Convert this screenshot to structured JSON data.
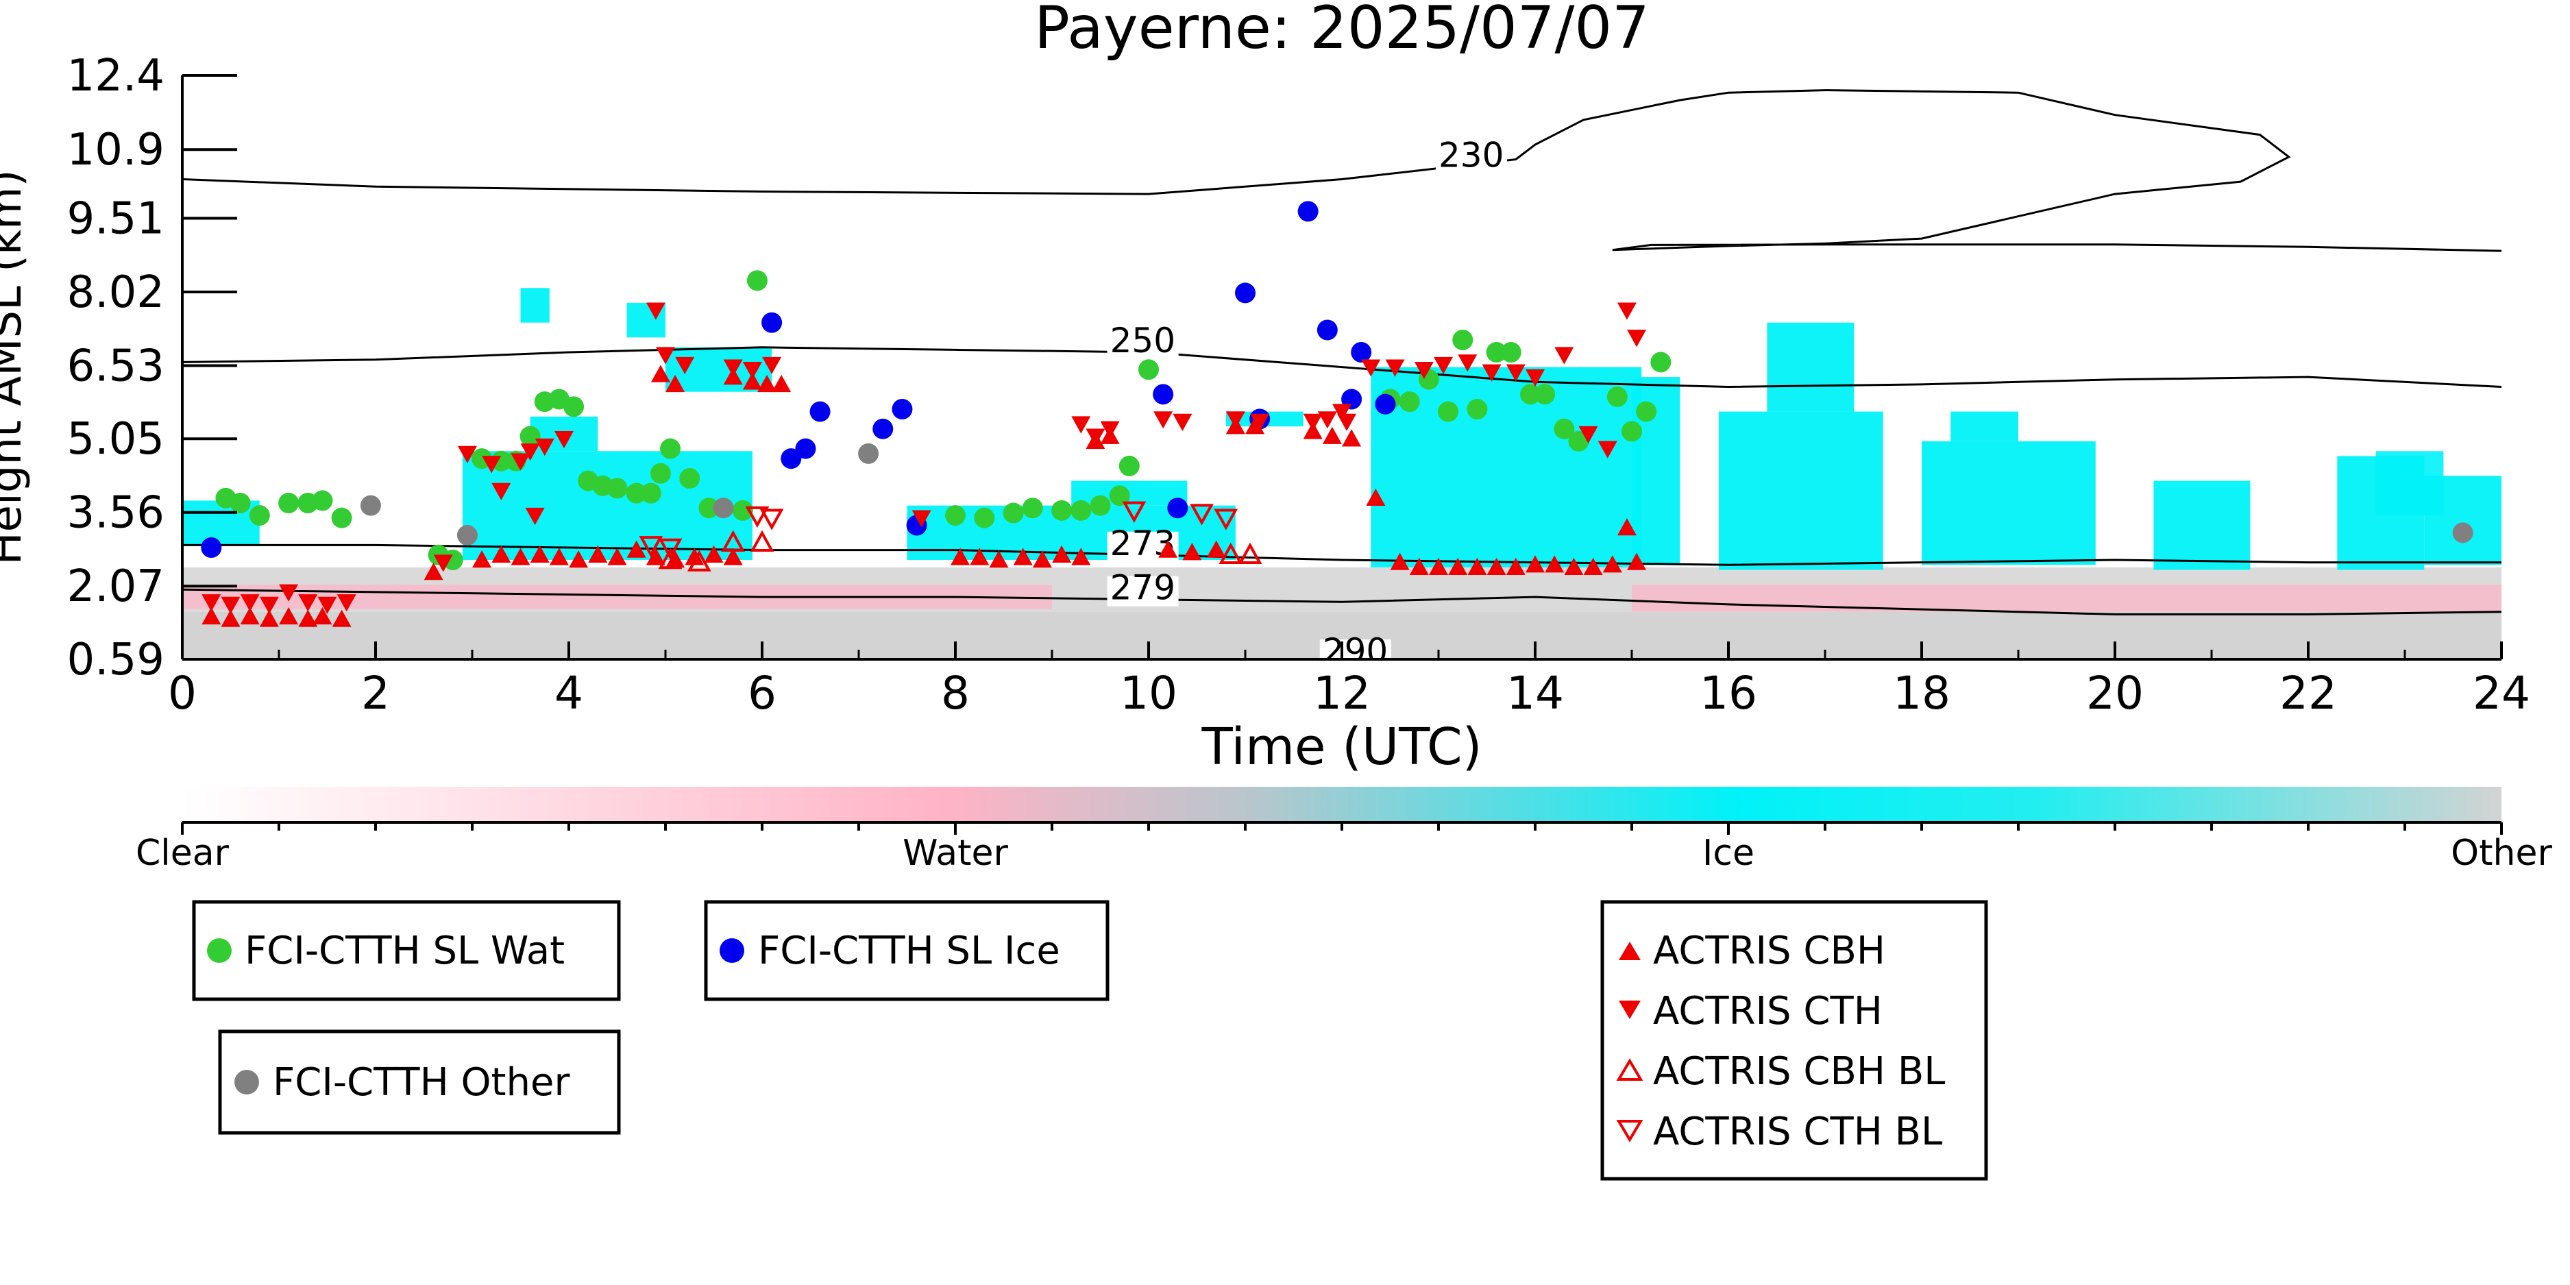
{
  "chart_data": {
    "type": "scatter",
    "title": "Payerne: 2025/07/07",
    "xlabel": "Time (UTC)",
    "ylabel": "Height AMSL (km)",
    "xlim": [
      0,
      24
    ],
    "ylim": [
      0.59,
      12.4
    ],
    "x_ticks": [
      0,
      2,
      4,
      6,
      8,
      10,
      12,
      14,
      16,
      18,
      20,
      22,
      24
    ],
    "y_ticks": [
      0.59,
      2.07,
      3.56,
      5.05,
      6.53,
      8.02,
      9.51,
      10.9,
      12.4
    ],
    "y_tick_labels": [
      "0.59",
      "2.07",
      "3.56",
      "5.05",
      "6.53",
      "8.02",
      "9.51",
      "10.9",
      "12.4"
    ],
    "grid": false,
    "colors": {
      "clear": "#ffffff",
      "water": "#ffb3c6",
      "ice": "#00f2f8",
      "other": "#d3d3d3",
      "fci_wat": "#33cc33",
      "fci_ice": "#0000ee",
      "fci_other": "#808080",
      "actris": "#ee0000",
      "contour": "#000000"
    },
    "colorbar": {
      "labels": [
        "Clear",
        "Water",
        "Ice",
        "Other"
      ]
    },
    "contours": [
      {
        "label": "230",
        "points": [
          [
            0,
            10.3
          ],
          [
            2,
            10.15
          ],
          [
            6,
            10.05
          ],
          [
            10,
            10.0
          ],
          [
            11,
            10.15
          ],
          [
            12,
            10.3
          ],
          [
            13.8,
            10.7
          ],
          [
            14.0,
            11.0
          ],
          [
            14.5,
            11.5
          ],
          [
            15.5,
            11.9
          ],
          [
            16,
            12.05
          ],
          [
            17,
            12.1
          ],
          [
            19,
            12.05
          ],
          [
            20,
            11.6
          ],
          [
            21.5,
            11.2
          ],
          [
            21.8,
            10.75
          ],
          [
            21.3,
            10.25
          ],
          [
            20,
            10.0
          ],
          [
            18,
            9.1
          ],
          [
            17,
            9.0
          ],
          [
            16,
            8.95
          ],
          [
            14.8,
            8.87
          ],
          [
            15.2,
            8.97
          ],
          [
            17.3,
            8.98
          ],
          [
            20,
            8.98
          ],
          [
            22,
            8.93
          ],
          [
            24,
            8.85
          ]
        ]
      },
      {
        "label": "250",
        "points": [
          [
            0,
            6.6
          ],
          [
            2,
            6.65
          ],
          [
            4,
            6.8
          ],
          [
            6,
            6.9
          ],
          [
            8,
            6.85
          ],
          [
            10,
            6.8
          ],
          [
            12,
            6.5
          ],
          [
            14,
            6.2
          ],
          [
            16,
            6.1
          ],
          [
            18,
            6.15
          ],
          [
            20,
            6.25
          ],
          [
            22,
            6.3
          ],
          [
            24,
            6.1
          ]
        ]
      },
      {
        "label": "273",
        "points": [
          [
            0,
            2.9
          ],
          [
            2,
            2.9
          ],
          [
            4,
            2.85
          ],
          [
            6,
            2.8
          ],
          [
            8,
            2.8
          ],
          [
            10,
            2.7
          ],
          [
            12,
            2.6
          ],
          [
            14,
            2.55
          ],
          [
            16,
            2.5
          ],
          [
            18,
            2.55
          ],
          [
            20,
            2.6
          ],
          [
            22,
            2.55
          ],
          [
            24,
            2.55
          ]
        ]
      },
      {
        "label": "279",
        "points": [
          [
            0,
            2.0
          ],
          [
            2,
            1.95
          ],
          [
            4,
            1.9
          ],
          [
            6,
            1.85
          ],
          [
            8,
            1.85
          ],
          [
            10,
            1.8
          ],
          [
            12,
            1.75
          ],
          [
            14,
            1.85
          ],
          [
            16,
            1.7
          ],
          [
            18,
            1.6
          ],
          [
            20,
            1.5
          ],
          [
            22,
            1.5
          ],
          [
            24,
            1.55
          ]
        ]
      }
    ],
    "contour_labels": [
      {
        "text": "230",
        "x": 13.0,
        "y": 10.55
      },
      {
        "text": "250",
        "x": 9.6,
        "y": 6.8
      },
      {
        "text": "273",
        "x": 9.6,
        "y": 2.7
      },
      {
        "text": "279",
        "x": 9.6,
        "y": 1.8
      },
      {
        "text": "290",
        "x": 11.8,
        "y": 0.52
      }
    ],
    "series": [
      {
        "name": "FCI-CTTH SL Wat",
        "marker": "circle",
        "points": [
          [
            0.45,
            3.85
          ],
          [
            0.6,
            3.75
          ],
          [
            0.8,
            3.5
          ],
          [
            1.1,
            3.75
          ],
          [
            1.3,
            3.75
          ],
          [
            1.45,
            3.8
          ],
          [
            1.65,
            3.45
          ],
          [
            2.65,
            2.7
          ],
          [
            2.8,
            2.6
          ],
          [
            3.1,
            4.65
          ],
          [
            3.3,
            4.6
          ],
          [
            3.45,
            4.6
          ],
          [
            3.6,
            5.1
          ],
          [
            3.75,
            5.8
          ],
          [
            3.9,
            5.85
          ],
          [
            4.05,
            5.7
          ],
          [
            4.2,
            4.2
          ],
          [
            4.35,
            4.1
          ],
          [
            4.5,
            4.05
          ],
          [
            4.7,
            3.95
          ],
          [
            4.85,
            3.95
          ],
          [
            4.95,
            4.35
          ],
          [
            5.05,
            4.85
          ],
          [
            5.25,
            4.25
          ],
          [
            5.45,
            3.65
          ],
          [
            5.8,
            3.6
          ],
          [
            5.95,
            8.25
          ],
          [
            8.0,
            3.5
          ],
          [
            8.3,
            3.45
          ],
          [
            8.6,
            3.55
          ],
          [
            8.8,
            3.65
          ],
          [
            9.1,
            3.6
          ],
          [
            9.3,
            3.6
          ],
          [
            9.5,
            3.7
          ],
          [
            9.7,
            3.9
          ],
          [
            9.8,
            4.5
          ],
          [
            10.0,
            6.45
          ],
          [
            12.5,
            5.85
          ],
          [
            12.7,
            5.8
          ],
          [
            12.9,
            6.25
          ],
          [
            13.1,
            5.6
          ],
          [
            13.25,
            7.05
          ],
          [
            13.4,
            5.65
          ],
          [
            13.6,
            6.8
          ],
          [
            13.75,
            6.8
          ],
          [
            13.95,
            5.95
          ],
          [
            14.1,
            5.95
          ],
          [
            14.3,
            5.25
          ],
          [
            14.45,
            5.0
          ],
          [
            14.85,
            5.9
          ],
          [
            15.0,
            5.2
          ],
          [
            15.15,
            5.6
          ],
          [
            15.3,
            6.6
          ]
        ]
      },
      {
        "name": "FCI-CTTH SL Ice",
        "marker": "circle",
        "points": [
          [
            0.3,
            2.85
          ],
          [
            6.1,
            7.4
          ],
          [
            6.3,
            4.65
          ],
          [
            6.45,
            4.85
          ],
          [
            6.6,
            5.6
          ],
          [
            7.25,
            5.25
          ],
          [
            7.45,
            5.65
          ],
          [
            7.6,
            3.3
          ],
          [
            10.15,
            5.95
          ],
          [
            10.3,
            3.65
          ],
          [
            11.0,
            8.0
          ],
          [
            11.15,
            5.45
          ],
          [
            11.65,
            9.65
          ],
          [
            11.85,
            7.25
          ],
          [
            12.1,
            5.85
          ],
          [
            12.2,
            6.8
          ],
          [
            12.45,
            5.75
          ]
        ]
      },
      {
        "name": "FCI-CTTH Other",
        "marker": "circle",
        "points": [
          [
            1.95,
            3.7
          ],
          [
            2.95,
            3.1
          ],
          [
            5.6,
            3.65
          ],
          [
            7.1,
            4.75
          ],
          [
            23.6,
            3.15
          ]
        ]
      },
      {
        "name": "ACTRIS CBH",
        "marker": "triangle-up",
        "points": [
          [
            0.3,
            1.45
          ],
          [
            0.5,
            1.4
          ],
          [
            0.7,
            1.45
          ],
          [
            0.9,
            1.4
          ],
          [
            1.1,
            1.45
          ],
          [
            1.3,
            1.4
          ],
          [
            1.45,
            1.45
          ],
          [
            1.65,
            1.4
          ],
          [
            2.6,
            2.35
          ],
          [
            3.1,
            2.6
          ],
          [
            3.3,
            2.7
          ],
          [
            3.5,
            2.65
          ],
          [
            3.7,
            2.7
          ],
          [
            3.9,
            2.65
          ],
          [
            4.1,
            2.6
          ],
          [
            4.3,
            2.7
          ],
          [
            4.5,
            2.65
          ],
          [
            4.7,
            2.8
          ],
          [
            4.9,
            2.65
          ],
          [
            5.1,
            2.6
          ],
          [
            5.3,
            2.65
          ],
          [
            5.5,
            2.7
          ],
          [
            5.7,
            2.65
          ],
          [
            6.05,
            6.15
          ],
          [
            6.2,
            6.15
          ],
          [
            8.05,
            2.65
          ],
          [
            8.25,
            2.65
          ],
          [
            8.45,
            2.6
          ],
          [
            8.7,
            2.65
          ],
          [
            8.9,
            2.6
          ],
          [
            9.1,
            2.7
          ],
          [
            9.3,
            2.65
          ],
          [
            9.45,
            5.0
          ],
          [
            9.6,
            5.1
          ],
          [
            10.2,
            2.8
          ],
          [
            10.45,
            2.75
          ],
          [
            10.7,
            2.8
          ],
          [
            10.9,
            5.3
          ],
          [
            11.1,
            5.3
          ],
          [
            11.7,
            5.2
          ],
          [
            11.9,
            5.1
          ],
          [
            12.1,
            5.05
          ],
          [
            12.35,
            3.85
          ],
          [
            12.6,
            2.55
          ],
          [
            12.8,
            2.45
          ],
          [
            13.0,
            2.45
          ],
          [
            13.2,
            2.45
          ],
          [
            13.4,
            2.45
          ],
          [
            13.6,
            2.45
          ],
          [
            13.8,
            2.45
          ],
          [
            14.0,
            2.5
          ],
          [
            14.2,
            2.5
          ],
          [
            14.4,
            2.45
          ],
          [
            14.6,
            2.45
          ],
          [
            14.8,
            2.5
          ],
          [
            14.95,
            3.25
          ],
          [
            15.05,
            2.55
          ],
          [
            4.95,
            6.35
          ],
          [
            5.1,
            6.15
          ],
          [
            5.7,
            6.3
          ],
          [
            5.9,
            6.2
          ]
        ]
      },
      {
        "name": "ACTRIS CTH",
        "marker": "triangle-down",
        "points": [
          [
            0.3,
            1.75
          ],
          [
            0.5,
            1.7
          ],
          [
            0.7,
            1.75
          ],
          [
            0.9,
            1.7
          ],
          [
            1.1,
            1.95
          ],
          [
            1.3,
            1.75
          ],
          [
            1.5,
            1.7
          ],
          [
            1.7,
            1.75
          ],
          [
            2.7,
            2.55
          ],
          [
            2.95,
            4.75
          ],
          [
            3.3,
            4.0
          ],
          [
            3.6,
            4.8
          ],
          [
            3.75,
            4.9
          ],
          [
            3.95,
            5.05
          ],
          [
            4.9,
            7.65
          ],
          [
            5.0,
            6.75
          ],
          [
            5.2,
            6.55
          ],
          [
            5.7,
            6.5
          ],
          [
            5.9,
            6.45
          ],
          [
            6.1,
            6.55
          ],
          [
            7.65,
            3.45
          ],
          [
            9.3,
            5.35
          ],
          [
            9.45,
            5.1
          ],
          [
            9.6,
            5.25
          ],
          [
            10.15,
            5.45
          ],
          [
            10.35,
            5.4
          ],
          [
            10.9,
            5.45
          ],
          [
            11.15,
            5.4
          ],
          [
            11.7,
            5.4
          ],
          [
            11.85,
            5.45
          ],
          [
            12.05,
            5.4
          ],
          [
            12.3,
            6.5
          ],
          [
            12.55,
            6.5
          ],
          [
            12.85,
            6.45
          ],
          [
            13.05,
            6.55
          ],
          [
            13.3,
            6.6
          ],
          [
            13.55,
            6.4
          ],
          [
            13.8,
            6.4
          ],
          [
            14.0,
            6.3
          ],
          [
            14.3,
            6.75
          ],
          [
            14.55,
            5.15
          ],
          [
            14.75,
            4.85
          ],
          [
            14.95,
            7.65
          ],
          [
            15.05,
            7.1
          ],
          [
            12.0,
            5.6
          ],
          [
            3.65,
            3.5
          ],
          [
            3.5,
            4.6
          ],
          [
            3.2,
            4.55
          ]
        ]
      },
      {
        "name": "ACTRIS CBH BL",
        "marker": "triangle-up-open",
        "points": [
          [
            5.05,
            2.6
          ],
          [
            5.35,
            2.55
          ],
          [
            5.7,
            2.95
          ],
          [
            6.0,
            2.95
          ],
          [
            10.85,
            2.7
          ],
          [
            11.05,
            2.7
          ]
        ]
      },
      {
        "name": "ACTRIS CTH BL",
        "marker": "triangle-down-open",
        "points": [
          [
            4.85,
            2.9
          ],
          [
            5.05,
            2.85
          ],
          [
            5.95,
            3.5
          ],
          [
            6.1,
            3.45
          ],
          [
            9.85,
            3.6
          ],
          [
            10.55,
            3.55
          ],
          [
            10.8,
            3.45
          ]
        ]
      }
    ]
  }
}
